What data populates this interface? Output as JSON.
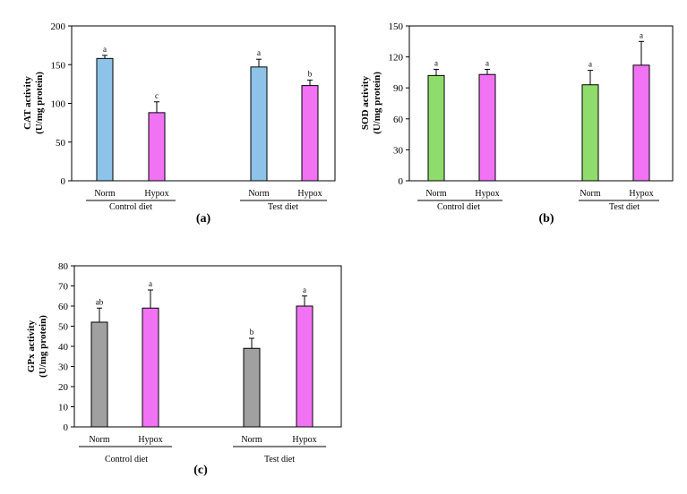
{
  "colors": {
    "norm_a": "#8dc3e8",
    "norm_b": "#8fdb6b",
    "norm_c": "#a0a0a0",
    "hypox": "#f272f4",
    "axis": "#000000"
  },
  "chart_data": [
    {
      "panel_label": "(a)",
      "type": "bar",
      "ylabel_line1": "CAT activity",
      "ylabel_line2": "(U/mg protein)",
      "ylim": [
        0,
        200
      ],
      "yticks": [
        "0",
        "50",
        "100",
        "150",
        "200"
      ],
      "groups": [
        "Control diet",
        "Test diet"
      ],
      "categories": [
        "Norm",
        "Hypox",
        "Norm",
        "Hypox"
      ],
      "values": [
        158,
        88,
        147,
        123
      ],
      "errors": [
        4,
        14,
        10,
        7
      ],
      "letters": [
        "a",
        "c",
        "a",
        "b"
      ],
      "norm_color": "#8dc3e8"
    },
    {
      "panel_label": "(b)",
      "type": "bar",
      "ylabel_line1": "SOD activity",
      "ylabel_line2": "(U/mg protein)",
      "ylim": [
        0,
        150
      ],
      "yticks": [
        "0",
        "30",
        "60",
        "90",
        "120",
        "150"
      ],
      "groups": [
        "Control diet",
        "Test diet"
      ],
      "categories": [
        "Norm",
        "Hypox",
        "Norm",
        "Hypox"
      ],
      "values": [
        102,
        103,
        93,
        112
      ],
      "errors": [
        6,
        5,
        14,
        23
      ],
      "letters": [
        "a",
        "a",
        "a",
        "a"
      ],
      "norm_color": "#8fdb6b"
    },
    {
      "panel_label": "(c)",
      "type": "bar",
      "ylabel_line1": "GPx  activity",
      "ylabel_line2": "(U/mg protein)",
      "ylim": [
        0,
        80
      ],
      "yticks": [
        "0",
        "10",
        "20",
        "30",
        "40",
        "50",
        "60",
        "70",
        "80"
      ],
      "groups": [
        "Control diet",
        "Test diet"
      ],
      "categories": [
        "Norm",
        "Hypox",
        "Norm",
        "Hypox"
      ],
      "values": [
        52,
        59,
        39,
        60
      ],
      "errors": [
        7,
        9,
        5,
        5
      ],
      "letters": [
        "ab",
        "a",
        "b",
        "a"
      ],
      "norm_color": "#a0a0a0"
    }
  ]
}
